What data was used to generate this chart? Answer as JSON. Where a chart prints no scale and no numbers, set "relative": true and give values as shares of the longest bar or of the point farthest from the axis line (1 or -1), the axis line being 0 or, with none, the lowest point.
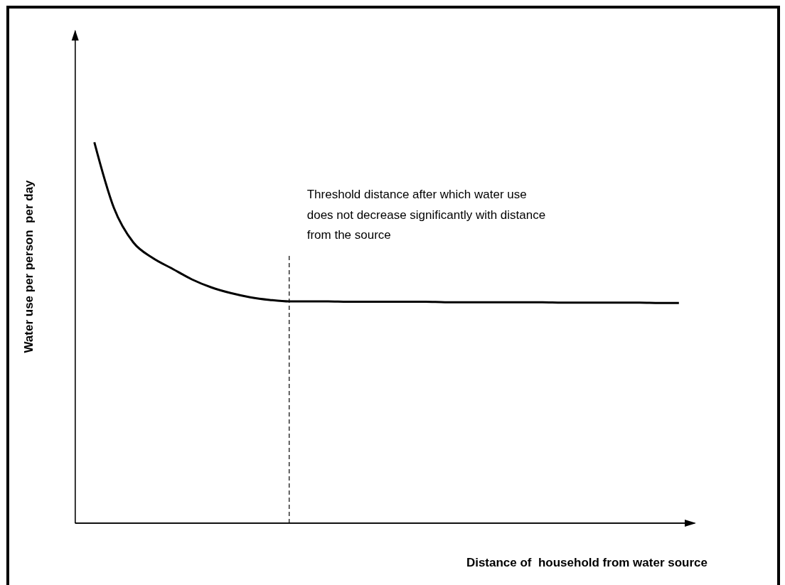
{
  "chart_data": {
    "type": "line",
    "relative": true,
    "xlabel": "Distance of  household from water source",
    "ylabel": "Water use per person  per day",
    "categories": [
      null,
      null,
      null,
      null,
      null,
      null,
      null,
      null,
      null,
      null,
      null,
      null,
      null,
      null,
      null,
      null,
      null,
      null,
      null,
      null,
      null,
      null,
      null,
      null,
      null,
      null,
      null,
      null,
      null,
      null,
      null
    ],
    "series": [
      {
        "color": "#000000",
        "values": [
          1,
          0.828,
          0.737,
          0.696,
          0.668,
          0.64,
          0.619,
          0.604,
          0.593,
          0.586,
          0.582,
          0.582,
          0.582,
          0.581,
          0.581,
          0.581,
          0.581,
          0.581,
          0.58,
          0.58,
          0.58,
          0.58,
          0.58,
          0.58,
          0.579,
          0.579,
          0.579,
          0.579,
          0.579,
          0.578,
          0.578
        ]
      }
    ],
    "annotations": [
      "Threshold distance after which water use\ndoes not decrease significantly with distance\nfrom the source"
    ],
    "grid": false,
    "legend": false,
    "marker": "none",
    "line_style": "solid"
  }
}
